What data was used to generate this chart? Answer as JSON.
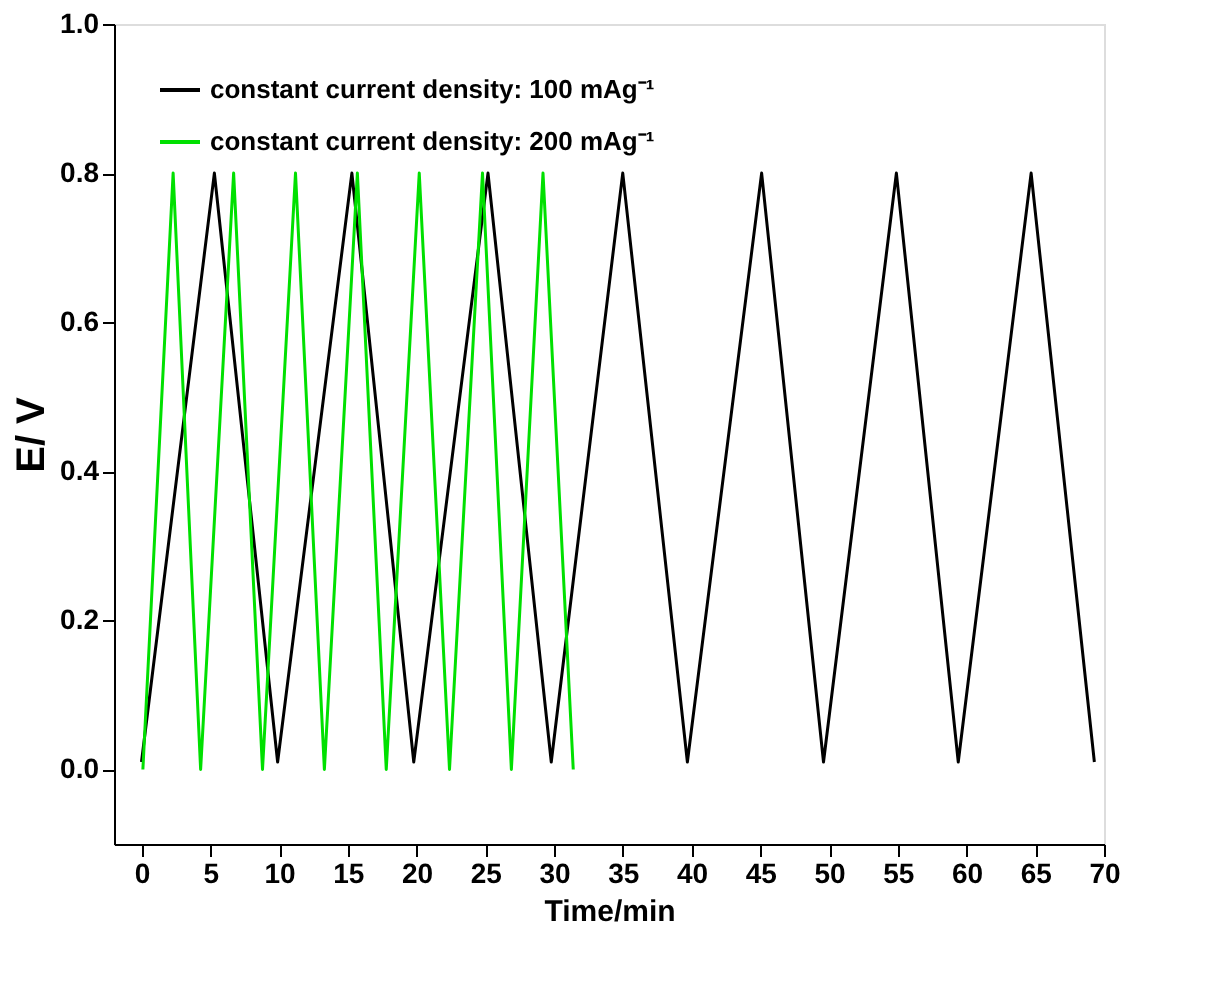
{
  "chart_data": {
    "type": "line",
    "xlabel": "Time/min",
    "ylabel": "E/ V",
    "xlim": [
      -2,
      70
    ],
    "xticks": [
      0,
      5,
      10,
      15,
      20,
      25,
      30,
      35,
      40,
      45,
      50,
      55,
      60,
      65,
      70
    ],
    "ylim": [
      -0.1,
      1.0
    ],
    "yticks": [
      {
        "value": 0,
        "label": "0.0"
      },
      0.2,
      0.4,
      0.6,
      0.8,
      {
        "value": 1,
        "label": "1.0"
      }
    ],
    "grid": false,
    "legend": "top left",
    "line_style": "solid",
    "marker": "none",
    "series": [
      {
        "name": "constant current density: 100 mAg⁻¹",
        "color": "#000000",
        "x": [
          0,
          5.3,
          9.9,
          15.3,
          19.8,
          25.2,
          29.8,
          35.0,
          39.7,
          45.1,
          49.6,
          54.9,
          59.4,
          64.7,
          69.3
        ],
        "values": [
          0.01,
          0.8,
          0.01,
          0.8,
          0.01,
          0.8,
          0.01,
          0.8,
          0.01,
          0.8,
          0.01,
          0.8,
          0.01,
          0.8,
          0.01
        ]
      },
      {
        "name": "constant current density: 200 mAg⁻¹",
        "color": "#00e000",
        "x": [
          0.1,
          2.3,
          4.3,
          6.7,
          8.8,
          11.2,
          13.3,
          15.7,
          17.8,
          20.2,
          22.4,
          24.8,
          26.9,
          29.2,
          31.4
        ],
        "values": [
          0.0,
          0.8,
          0.0,
          0.8,
          0.0,
          0.8,
          0.0,
          0.8,
          0.0,
          0.8,
          0.0,
          0.8,
          0.0,
          0.8,
          0.0
        ]
      }
    ]
  }
}
